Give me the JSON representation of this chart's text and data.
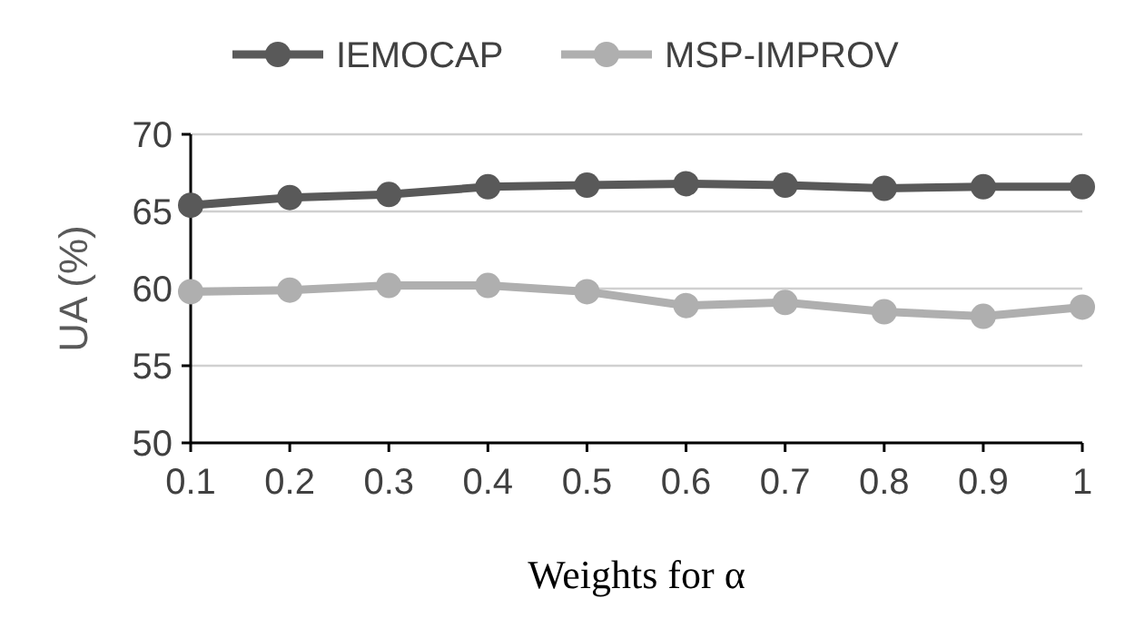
{
  "chart_data": {
    "type": "line",
    "xlabel": "Weights for α",
    "ylabel": "UA (%)",
    "categories": [
      "0.1",
      "0.2",
      "0.3",
      "0.4",
      "0.5",
      "0.6",
      "0.7",
      "0.8",
      "0.9",
      "1"
    ],
    "series": [
      {
        "name": "IEMOCAP",
        "color": "#595959",
        "values": [
          65.4,
          65.9,
          66.1,
          66.6,
          66.7,
          66.8,
          66.7,
          66.5,
          66.6,
          66.6
        ]
      },
      {
        "name": "MSP-IMPROV",
        "color": "#afafaf",
        "values": [
          59.8,
          59.9,
          60.2,
          60.2,
          59.8,
          58.9,
          59.1,
          58.5,
          58.2,
          58.8
        ]
      }
    ],
    "ylim": [
      50,
      70
    ],
    "yticks": [
      50,
      55,
      60,
      65,
      70
    ],
    "grid": "y",
    "legend": "top",
    "marker": "circle",
    "line_style": "solid"
  }
}
